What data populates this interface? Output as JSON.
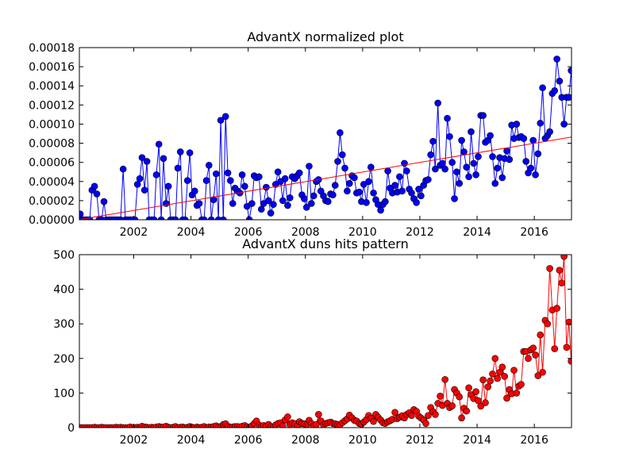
{
  "chart_data": [
    {
      "type": "line",
      "title": "AdvantX normalized plot",
      "x": [
        2000.13,
        2000.21,
        2000.29,
        2000.38,
        2000.46,
        2000.54,
        2000.63,
        2000.71,
        2000.79,
        2000.88,
        2000.96,
        2001.04,
        2001.13,
        2001.21,
        2001.29,
        2001.38,
        2001.46,
        2001.54,
        2001.63,
        2001.71,
        2001.79,
        2001.88,
        2001.96,
        2002.04,
        2002.13,
        2002.21,
        2002.29,
        2002.38,
        2002.46,
        2002.54,
        2002.63,
        2002.71,
        2002.79,
        2002.88,
        2002.96,
        2003.04,
        2003.13,
        2003.21,
        2003.29,
        2003.38,
        2003.46,
        2003.54,
        2003.63,
        2003.71,
        2003.79,
        2003.88,
        2003.96,
        2004.04,
        2004.13,
        2004.21,
        2004.29,
        2004.38,
        2004.46,
        2004.54,
        2004.63,
        2004.71,
        2004.79,
        2004.88,
        2004.96,
        2005.04,
        2005.13,
        2005.21,
        2005.29,
        2005.38,
        2005.46,
        2005.54,
        2005.63,
        2005.71,
        2005.79,
        2005.88,
        2005.96,
        2006.04,
        2006.13,
        2006.21,
        2006.29,
        2006.38,
        2006.46,
        2006.54,
        2006.63,
        2006.71,
        2006.79,
        2006.88,
        2006.96,
        2007.04,
        2007.13,
        2007.21,
        2007.29,
        2007.38,
        2007.46,
        2007.54,
        2007.63,
        2007.71,
        2007.79,
        2007.88,
        2007.96,
        2008.04,
        2008.13,
        2008.21,
        2008.29,
        2008.38,
        2008.46,
        2008.54,
        2008.63,
        2008.71,
        2008.79,
        2008.88,
        2008.96,
        2009.04,
        2009.13,
        2009.21,
        2009.29,
        2009.38,
        2009.46,
        2009.54,
        2009.63,
        2009.71,
        2009.79,
        2009.88,
        2009.96,
        2010.04,
        2010.13,
        2010.21,
        2010.29,
        2010.38,
        2010.46,
        2010.54,
        2010.63,
        2010.71,
        2010.79,
        2010.88,
        2010.96,
        2011.04,
        2011.13,
        2011.21,
        2011.29,
        2011.38,
        2011.46,
        2011.54,
        2011.63,
        2011.71,
        2011.79,
        2011.88,
        2011.96,
        2012.04,
        2012.13,
        2012.21,
        2012.29,
        2012.38,
        2012.46,
        2012.54,
        2012.63,
        2012.71,
        2012.79,
        2012.88,
        2012.96,
        2013.04,
        2013.13,
        2013.21,
        2013.29,
        2013.38,
        2013.46,
        2013.54,
        2013.63,
        2013.71,
        2013.79,
        2013.88,
        2013.96,
        2014.04,
        2014.13,
        2014.21,
        2014.29,
        2014.38,
        2014.46,
        2014.54,
        2014.63,
        2014.71,
        2014.79,
        2014.88,
        2014.96,
        2015.04,
        2015.13,
        2015.21,
        2015.29,
        2015.38,
        2015.46,
        2015.54,
        2015.63,
        2015.71,
        2015.79,
        2015.88,
        2015.96,
        2016.04,
        2016.13,
        2016.21,
        2016.29,
        2016.38,
        2016.46,
        2016.54,
        2016.63,
        2016.71,
        2016.79,
        2016.88,
        2016.96,
        2017.04,
        2017.13,
        2017.21,
        2017.29
      ],
      "series": [
        {
          "color": "#0000ff",
          "values": [
            6e-06,
            0,
            0,
            0,
            0,
            3.1e-05,
            3.5e-05,
            2.7e-05,
            0,
            0,
            1.9e-05,
            0,
            0,
            0,
            0,
            0,
            0,
            0,
            5.3e-05,
            0,
            0,
            0,
            0,
            0,
            3.7e-05,
            4.3e-05,
            6.5e-05,
            3.1e-05,
            6.1e-05,
            0,
            0,
            0,
            4.7e-05,
            7.9e-05,
            0,
            6.4e-05,
            1.7e-05,
            3.5e-05,
            0,
            0,
            0,
            5.4e-05,
            7.1e-05,
            0,
            0,
            4.1e-05,
            7e-05,
            2.6e-05,
            3e-05,
            1.5e-05,
            1.7e-05,
            0,
            0,
            4.1e-05,
            5.7e-05,
            0,
            2.1e-05,
            4.8e-05,
            0,
            0.000104,
            0,
            0.000108,
            4.9e-05,
            4.1e-05,
            1.7e-05,
            3.3e-05,
            3e-05,
            2.8e-05,
            4.7e-05,
            3.5e-05,
            1.4e-05,
            0,
            1.7e-05,
            4.6e-05,
            4.4e-05,
            4.5e-05,
            1.1e-05,
            1.7e-05,
            3.4e-05,
            2e-05,
            7e-06,
            1.6e-05,
            3.7e-05,
            5e-05,
            4e-05,
            2e-05,
            4.3e-05,
            1.5e-05,
            2.3e-05,
            4.5e-05,
            4.3e-05,
            4.6e-05,
            4.9e-05,
            2.6e-05,
            2.2e-05,
            1.3e-05,
            5.6e-05,
            1.7e-05,
            2.5e-05,
            4e-05,
            4.2e-05,
            3e-05,
            2.5e-05,
            2e-05,
            1.9e-05,
            2.7e-05,
            2.6e-05,
            3.6e-05,
            6.1e-05,
            9.1e-05,
            6.8e-05,
            5.4e-05,
            3e-05,
            3.8e-05,
            4.6e-05,
            4.4e-05,
            2.8e-05,
            2.9e-05,
            1.9e-05,
            3.7e-05,
            1.8e-05,
            4e-05,
            5.5e-05,
            2.8e-05,
            2.1e-05,
            1.6e-05,
            1e-05,
            1.6e-05,
            1.9e-05,
            5.1e-05,
            3.3e-05,
            2.8e-05,
            3.6e-05,
            2.9e-05,
            4.5e-05,
            3e-05,
            5.9e-05,
            5.1e-05,
            3.2e-05,
            2.8e-05,
            2.2e-05,
            1.8e-05,
            3.2e-05,
            2.5e-05,
            3.6e-05,
            4.1e-05,
            4.2e-05,
            6.8e-05,
            8.2e-05,
            5.3e-05,
            0.000122,
            5.7e-05,
            5.9e-05,
            5.3e-05,
            0.000106,
            8.7e-05,
            6e-05,
            2.2e-05,
            5e-05,
            3.8e-05,
            8.3e-05,
            7.1e-05,
            5.5e-05,
            4.5e-05,
            9.2e-05,
            5.9e-05,
            4.7e-05,
            6.6e-05,
            0.000109,
            0.000109,
            8.1e-05,
            8.3e-05,
            8.8e-05,
            6.6e-05,
            3.8e-05,
            5.4e-05,
            6.5e-05,
            4.4e-05,
            6.4e-05,
            7.2e-05,
            6.3e-05,
            9.9e-05,
            8.5e-05,
            0.0001,
            8.6e-05,
            8.7e-05,
            8.5e-05,
            6.1e-05,
            4.9e-05,
            5.4e-05,
            8.3e-05,
            4.7e-05,
            6.9e-05,
            0.000101,
            0.000138,
            8.5e-05,
            8.8e-05,
            9.2e-05,
            0.000132,
            0.000135,
            0.000168,
            0.000145,
            0.000128,
            0.0001,
            0.000128,
            0.000128,
            0.000156
          ]
        }
      ],
      "trend": {
        "color": "#ff0000",
        "x": [
          2000.1,
          2017.3
        ],
        "values": [
          2e-07,
          8.65e-05
        ]
      },
      "xlim": [
        2000.1,
        2017.3
      ],
      "xticks": [
        2002,
        2004,
        2006,
        2008,
        2010,
        2012,
        2014,
        2016
      ],
      "ylim": [
        0,
        0.00018
      ],
      "yticks": [
        {
          "value": 0,
          "label": "0.00000"
        },
        {
          "value": 2e-05,
          "label": "0.00002"
        },
        {
          "value": 4e-05,
          "label": "0.00004"
        },
        {
          "value": 6e-05,
          "label": "0.00006"
        },
        {
          "value": 8e-05,
          "label": "0.00008"
        },
        {
          "value": 0.0001,
          "label": "0.00010"
        },
        {
          "value": 0.00012,
          "label": "0.00012"
        },
        {
          "value": 0.00014,
          "label": "0.00014"
        },
        {
          "value": 0.00016,
          "label": "0.00016"
        },
        {
          "value": 0.00018,
          "label": "0.00018"
        }
      ]
    },
    {
      "type": "line",
      "title": "AdvantX duns hits pattern",
      "x": [
        2000.13,
        2000.21,
        2000.29,
        2000.38,
        2000.46,
        2000.54,
        2000.63,
        2000.71,
        2000.79,
        2000.88,
        2000.96,
        2001.04,
        2001.13,
        2001.21,
        2001.29,
        2001.38,
        2001.46,
        2001.54,
        2001.63,
        2001.71,
        2001.79,
        2001.88,
        2001.96,
        2002.04,
        2002.13,
        2002.21,
        2002.29,
        2002.38,
        2002.46,
        2002.54,
        2002.63,
        2002.71,
        2002.79,
        2002.88,
        2002.96,
        2003.04,
        2003.13,
        2003.21,
        2003.29,
        2003.38,
        2003.46,
        2003.54,
        2003.63,
        2003.71,
        2003.79,
        2003.88,
        2003.96,
        2004.04,
        2004.13,
        2004.21,
        2004.29,
        2004.38,
        2004.46,
        2004.54,
        2004.63,
        2004.71,
        2004.79,
        2004.88,
        2004.96,
        2005.04,
        2005.13,
        2005.21,
        2005.29,
        2005.38,
        2005.46,
        2005.54,
        2005.63,
        2005.71,
        2005.79,
        2005.88,
        2005.96,
        2006.04,
        2006.13,
        2006.21,
        2006.29,
        2006.38,
        2006.46,
        2006.54,
        2006.63,
        2006.71,
        2006.79,
        2006.88,
        2006.96,
        2007.04,
        2007.13,
        2007.21,
        2007.29,
        2007.38,
        2007.46,
        2007.54,
        2007.63,
        2007.71,
        2007.79,
        2007.88,
        2007.96,
        2008.04,
        2008.13,
        2008.21,
        2008.29,
        2008.38,
        2008.46,
        2008.54,
        2008.63,
        2008.71,
        2008.79,
        2008.88,
        2008.96,
        2009.04,
        2009.13,
        2009.21,
        2009.29,
        2009.38,
        2009.46,
        2009.54,
        2009.63,
        2009.71,
        2009.79,
        2009.88,
        2009.96,
        2010.04,
        2010.13,
        2010.21,
        2010.29,
        2010.38,
        2010.46,
        2010.54,
        2010.63,
        2010.71,
        2010.79,
        2010.88,
        2010.96,
        2011.04,
        2011.13,
        2011.21,
        2011.29,
        2011.38,
        2011.46,
        2011.54,
        2011.63,
        2011.71,
        2011.79,
        2011.88,
        2011.96,
        2012.04,
        2012.13,
        2012.21,
        2012.29,
        2012.38,
        2012.46,
        2012.54,
        2012.63,
        2012.71,
        2012.79,
        2012.88,
        2012.96,
        2013.04,
        2013.13,
        2013.21,
        2013.29,
        2013.38,
        2013.46,
        2013.54,
        2013.63,
        2013.71,
        2013.79,
        2013.88,
        2013.96,
        2014.04,
        2014.13,
        2014.21,
        2014.29,
        2014.38,
        2014.46,
        2014.54,
        2014.63,
        2014.71,
        2014.79,
        2014.88,
        2014.96,
        2015.04,
        2015.13,
        2015.21,
        2015.29,
        2015.38,
        2015.46,
        2015.54,
        2015.63,
        2015.71,
        2015.79,
        2015.88,
        2015.96,
        2016.04,
        2016.13,
        2016.21,
        2016.29,
        2016.38,
        2016.46,
        2016.54,
        2016.63,
        2016.71,
        2016.79,
        2016.88,
        2016.96,
        2017.04,
        2017.13,
        2017.21,
        2017.29
      ],
      "series": [
        {
          "color": "#ff0000",
          "values": [
            0,
            0,
            0,
            0,
            0,
            0,
            1,
            0,
            0,
            1,
            0,
            0,
            0,
            0,
            0,
            1,
            0,
            1,
            0,
            0,
            0,
            2,
            0,
            0,
            1,
            0,
            4,
            2,
            1,
            0,
            1,
            0,
            2,
            3,
            1,
            2,
            4,
            1,
            0,
            1,
            3,
            0,
            1,
            2,
            0,
            1,
            3,
            1,
            0,
            2,
            0,
            1,
            3,
            0,
            2,
            1,
            3,
            5,
            2,
            3,
            9,
            11,
            4,
            1,
            2,
            3,
            3,
            2,
            4,
            6,
            2,
            0,
            5,
            12,
            19,
            8,
            4,
            6,
            5,
            9,
            3,
            2,
            8,
            12,
            14,
            5,
            22,
            31,
            9,
            14,
            11,
            4,
            17,
            12,
            11,
            8,
            21,
            12,
            5,
            9,
            38,
            19,
            8,
            12,
            14,
            16,
            12,
            11,
            9,
            8,
            14,
            20,
            25,
            36,
            28,
            21,
            19,
            12,
            10,
            16,
            23,
            35,
            27,
            18,
            38,
            30,
            22,
            14,
            12,
            17,
            20,
            24,
            44,
            26,
            30,
            34,
            28,
            38,
            43,
            35,
            52,
            47,
            33,
            28,
            22,
            12,
            35,
            58,
            46,
            38,
            70,
            91,
            64,
            139,
            70,
            58,
            63,
            110,
            100,
            89,
            28,
            56,
            48,
            115,
            95,
            84,
            104,
            78,
            62,
            138,
            72,
            118,
            135,
            155,
            200,
            142,
            160,
            175,
            148,
            85,
            110,
            98,
            166,
            100,
            120,
            125,
            220,
            220,
            200,
            225,
            230,
            210,
            150,
            268,
            160,
            310,
            300,
            460,
            340,
            228,
            345,
            455,
            418,
            495,
            232,
            305,
            192
          ]
        }
      ],
      "xlim": [
        2000.1,
        2017.3
      ],
      "xticks": [
        2002,
        2004,
        2006,
        2008,
        2010,
        2012,
        2014,
        2016
      ],
      "ylim": [
        0,
        500
      ],
      "yticks": [
        0,
        100,
        200,
        300,
        400,
        500
      ]
    }
  ]
}
